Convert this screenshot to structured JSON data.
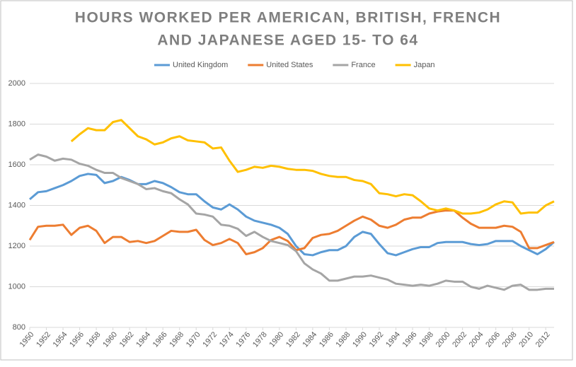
{
  "chart_data": {
    "type": "line",
    "title": [
      "HOURS WORKED PER AMERICAN, BRITISH, FRENCH",
      "AND JAPANESE AGED 15- TO 64"
    ],
    "x": [
      1950,
      1951,
      1952,
      1953,
      1954,
      1955,
      1956,
      1957,
      1958,
      1959,
      1960,
      1961,
      1962,
      1963,
      1964,
      1965,
      1966,
      1967,
      1968,
      1969,
      1970,
      1971,
      1972,
      1973,
      1974,
      1975,
      1976,
      1977,
      1978,
      1979,
      1980,
      1981,
      1982,
      1983,
      1984,
      1985,
      1986,
      1987,
      1988,
      1989,
      1990,
      1991,
      1992,
      1993,
      1994,
      1995,
      1996,
      1997,
      1998,
      1999,
      2000,
      2001,
      2002,
      2003,
      2004,
      2005,
      2006,
      2007,
      2008,
      2009,
      2010,
      2011,
      2012,
      2013
    ],
    "xlim": [
      1950,
      2013
    ],
    "xticks": [
      1950,
      1952,
      1954,
      1956,
      1958,
      1960,
      1962,
      1964,
      1966,
      1968,
      1970,
      1972,
      1974,
      1976,
      1978,
      1980,
      1982,
      1984,
      1986,
      1988,
      1990,
      1992,
      1994,
      1996,
      1998,
      2000,
      2002,
      2004,
      2006,
      2008,
      2010,
      2012
    ],
    "ylim": [
      800,
      2000
    ],
    "yticks": [
      800,
      1000,
      1200,
      1400,
      1600,
      1800,
      2000
    ],
    "grid": true,
    "legend": "top",
    "series": [
      {
        "name": "United Kingdom",
        "color": "#5b9bd5",
        "values": [
          1430,
          1465,
          1470,
          1485,
          1500,
          1520,
          1545,
          1555,
          1550,
          1510,
          1520,
          1540,
          1525,
          1505,
          1505,
          1520,
          1510,
          1490,
          1465,
          1455,
          1455,
          1420,
          1390,
          1380,
          1405,
          1380,
          1345,
          1325,
          1315,
          1305,
          1290,
          1260,
          1200,
          1160,
          1155,
          1170,
          1180,
          1180,
          1200,
          1245,
          1270,
          1260,
          1210,
          1165,
          1155,
          1170,
          1185,
          1195,
          1195,
          1215,
          1220,
          1220,
          1220,
          1210,
          1205,
          1210,
          1225,
          1225,
          1225,
          1200,
          1180,
          1160,
          1185,
          1220
        ]
      },
      {
        "name": "United States",
        "color": "#ed7d31",
        "values": [
          1230,
          1295,
          1300,
          1300,
          1305,
          1255,
          1290,
          1300,
          1275,
          1215,
          1245,
          1245,
          1220,
          1225,
          1215,
          1225,
          1250,
          1275,
          1270,
          1270,
          1280,
          1230,
          1205,
          1215,
          1235,
          1215,
          1160,
          1170,
          1190,
          1230,
          1245,
          1225,
          1180,
          1190,
          1240,
          1255,
          1260,
          1275,
          1300,
          1325,
          1345,
          1330,
          1300,
          1290,
          1305,
          1330,
          1340,
          1340,
          1360,
          1370,
          1375,
          1375,
          1340,
          1310,
          1290,
          1290,
          1290,
          1300,
          1295,
          1270,
          1190,
          1190,
          1205,
          1220
        ]
      },
      {
        "name": "France",
        "color": "#a5a5a5",
        "values": [
          1625,
          1650,
          1640,
          1620,
          1630,
          1625,
          1605,
          1595,
          1575,
          1560,
          1560,
          1535,
          1520,
          1505,
          1480,
          1485,
          1470,
          1460,
          1430,
          1405,
          1360,
          1355,
          1345,
          1305,
          1300,
          1285,
          1250,
          1270,
          1245,
          1225,
          1215,
          1205,
          1175,
          1115,
          1085,
          1065,
          1030,
          1030,
          1040,
          1050,
          1050,
          1055,
          1045,
          1035,
          1015,
          1010,
          1005,
          1010,
          1005,
          1015,
          1030,
          1025,
          1025,
          1000,
          990,
          1005,
          995,
          985,
          1005,
          1010,
          985,
          985,
          990,
          990
        ]
      },
      {
        "name": "Japan",
        "color": "#ffc000",
        "values": [
          null,
          null,
          null,
          null,
          null,
          1715,
          1750,
          1780,
          1770,
          1770,
          1810,
          1820,
          1780,
          1740,
          1725,
          1700,
          1710,
          1730,
          1740,
          1720,
          1715,
          1710,
          1680,
          1685,
          1620,
          1565,
          1575,
          1590,
          1585,
          1595,
          1590,
          1580,
          1575,
          1575,
          1570,
          1555,
          1545,
          1540,
          1540,
          1525,
          1520,
          1505,
          1460,
          1455,
          1445,
          1455,
          1450,
          1420,
          1385,
          1375,
          1385,
          1375,
          1360,
          1360,
          1365,
          1380,
          1405,
          1420,
          1415,
          1360,
          1365,
          1365,
          1400,
          1420
        ]
      }
    ]
  }
}
